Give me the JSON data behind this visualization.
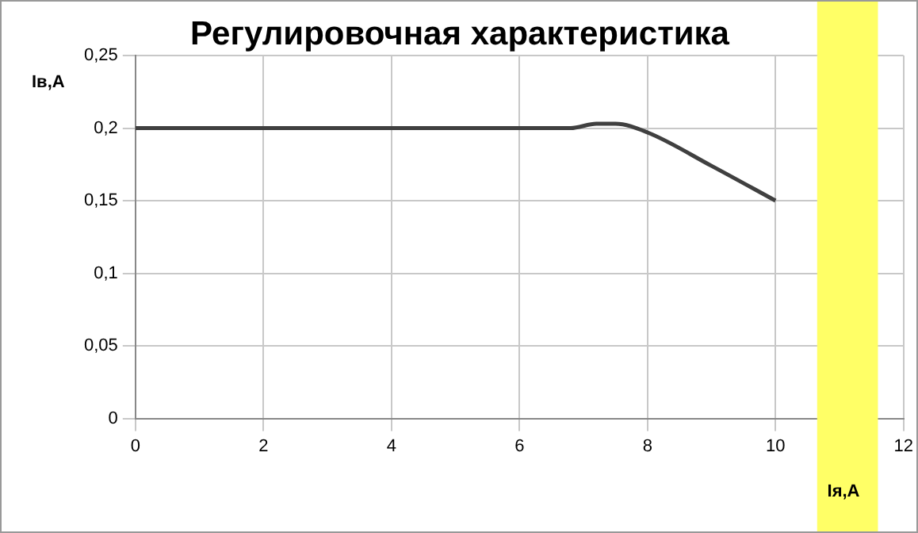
{
  "chart_data": {
    "type": "line",
    "title": "Регулировочная характеристика",
    "xlabel": "Iя,А",
    "ylabel": "Iв,А",
    "x": [
      0,
      6.8,
      7.2,
      7.5,
      8,
      9,
      10
    ],
    "series": [
      {
        "color": "#404040",
        "values": [
          0.2,
          0.2,
          0.203,
          0.203,
          0.197,
          0.174,
          0.15
        ]
      }
    ],
    "xlim": [
      0,
      12
    ],
    "xticks": [
      0,
      2,
      4,
      6,
      8,
      10,
      12
    ],
    "ylim": [
      0,
      0.25
    ],
    "yticks": [
      {
        "value": 0,
        "label": "0"
      },
      {
        "value": 0.05,
        "label": "0,05"
      },
      {
        "value": 0.1,
        "label": "0,1"
      },
      {
        "value": 0.15,
        "label": "0,15"
      },
      {
        "value": 0.2,
        "label": "0,2"
      },
      {
        "value": 0.25,
        "label": "0,25"
      }
    ],
    "bands": [
      {
        "axis": "x",
        "from": 10.65,
        "to": 11.6,
        "color": "#ffff66"
      }
    ],
    "grid": true,
    "legend": false,
    "marker": "none",
    "line_style": "solid"
  }
}
